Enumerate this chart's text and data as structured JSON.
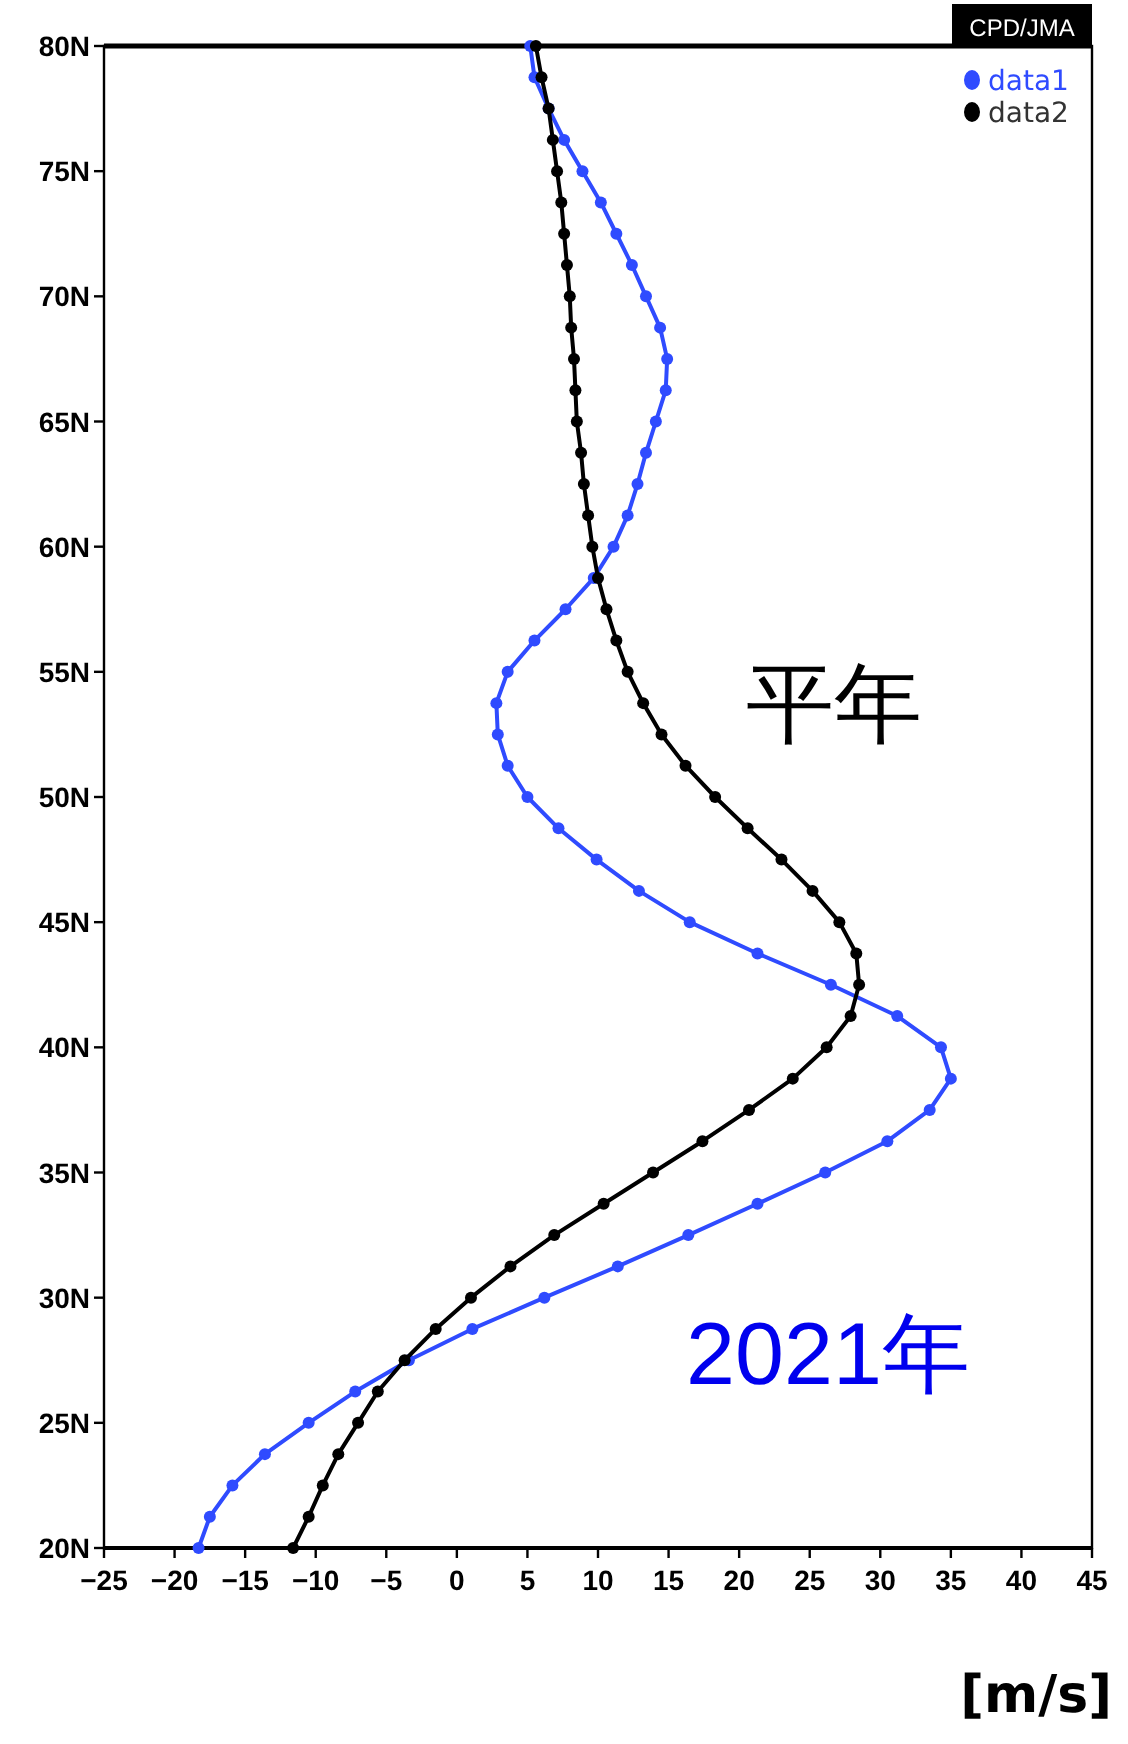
{
  "chart_data": {
    "type": "line",
    "xlabel": "[m/s]",
    "xlim": [
      -25,
      45
    ],
    "xticks": [
      -25,
      -20,
      -15,
      -10,
      -5,
      0,
      5,
      10,
      15,
      20,
      25,
      30,
      35,
      40,
      45
    ],
    "ylim": [
      20,
      80
    ],
    "yticks": [
      {
        "value": 20,
        "label": "20N"
      },
      {
        "value": 25,
        "label": "25N"
      },
      {
        "value": 30,
        "label": "30N"
      },
      {
        "value": 35,
        "label": "35N"
      },
      {
        "value": 40,
        "label": "40N"
      },
      {
        "value": 45,
        "label": "45N"
      },
      {
        "value": 50,
        "label": "50N"
      },
      {
        "value": 55,
        "label": "55N"
      },
      {
        "value": 60,
        "label": "60N"
      },
      {
        "value": 65,
        "label": "65N"
      },
      {
        "value": 70,
        "label": "70N"
      },
      {
        "value": 75,
        "label": "75N"
      },
      {
        "value": 80,
        "label": "80N"
      }
    ],
    "legend": "top right",
    "marker": "circle",
    "grid": false,
    "series": [
      {
        "name": "data1",
        "color": "#2f4bff",
        "x": [
          5.2,
          5.5,
          6.5,
          7.6,
          8.9,
          10.2,
          11.3,
          12.4,
          13.4,
          14.4,
          14.9,
          14.8,
          14.1,
          13.4,
          12.8,
          12.1,
          11.1,
          9.7,
          7.7,
          5.5,
          3.6,
          2.8,
          2.9,
          3.6,
          5.0,
          7.2,
          9.9,
          12.9,
          16.5,
          21.3,
          26.5,
          31.2,
          34.3,
          35.0,
          33.5,
          30.5,
          26.1,
          21.3,
          16.4,
          11.4,
          6.2,
          1.1,
          -3.4,
          -7.2,
          -10.5,
          -13.6,
          -15.9,
          -17.5,
          -18.3
        ],
        "values": [
          80,
          78.75,
          77.5,
          76.25,
          75,
          73.75,
          72.5,
          71.25,
          70,
          68.75,
          67.5,
          66.25,
          65,
          63.75,
          62.5,
          61.25,
          60,
          58.75,
          57.5,
          56.25,
          55,
          53.75,
          52.5,
          51.25,
          50,
          48.75,
          47.5,
          46.25,
          45,
          43.75,
          42.5,
          41.25,
          40,
          38.75,
          37.5,
          36.25,
          35,
          33.75,
          32.5,
          31.25,
          30,
          28.75,
          27.5,
          26.25,
          25,
          23.75,
          22.5,
          21.25,
          20
        ]
      },
      {
        "name": "data2",
        "color": "#000000",
        "x": [
          5.6,
          6.0,
          6.5,
          6.8,
          7.1,
          7.4,
          7.6,
          7.8,
          8.0,
          8.1,
          8.3,
          8.4,
          8.5,
          8.8,
          9.0,
          9.3,
          9.6,
          10.0,
          10.6,
          11.3,
          12.1,
          13.2,
          14.5,
          16.2,
          18.3,
          20.6,
          23.0,
          25.2,
          27.1,
          28.3,
          28.5,
          27.9,
          26.2,
          23.8,
          20.7,
          17.4,
          13.9,
          10.4,
          6.9,
          3.8,
          1.0,
          -1.5,
          -3.7,
          -5.6,
          -7.0,
          -8.4,
          -9.5,
          -10.5,
          -11.6
        ],
        "values": [
          80,
          78.75,
          77.5,
          76.25,
          75,
          73.75,
          72.5,
          71.25,
          70,
          68.75,
          67.5,
          66.25,
          65,
          63.75,
          62.5,
          61.25,
          60,
          58.75,
          57.5,
          56.25,
          55,
          53.75,
          52.5,
          51.25,
          50,
          48.75,
          47.5,
          46.25,
          45,
          43.75,
          42.5,
          41.25,
          40,
          38.75,
          37.5,
          36.25,
          35,
          33.75,
          32.5,
          31.25,
          30,
          28.75,
          27.5,
          26.25,
          25,
          23.75,
          22.5,
          21.25,
          20
        ]
      }
    ],
    "annotations": [
      "CPD/JMA",
      "2021年",
      "平年"
    ]
  }
}
